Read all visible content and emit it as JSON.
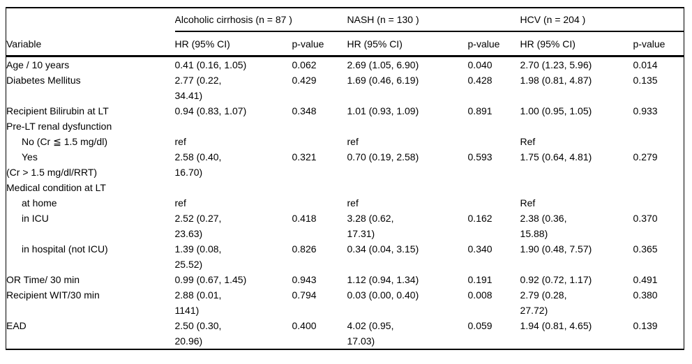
{
  "colors": {
    "background": "#ffffff",
    "text": "#000000",
    "rule": "#000000"
  },
  "table": {
    "variable_header": "Variable",
    "groups": [
      {
        "label": "Alcoholic cirrhosis (n = 87 )",
        "hr_header": "HR (95% CI)",
        "p_header": "p-value"
      },
      {
        "label": "NASH (n = 130 )",
        "hr_header": "HR (95% CI)",
        "p_header": "p-value"
      },
      {
        "label": "HCV (n = 204 )",
        "hr_header": "HR (95% CI)",
        "p_header": "p-value"
      }
    ],
    "rows": [
      {
        "variable": "Age / 10 years",
        "indent": false,
        "cells": [
          {
            "hr": "0.41 (0.16, 1.05)",
            "p": "0.062",
            "p_bold": false
          },
          {
            "hr": "2.69 (1.05, 6.90)",
            "p": "0.040",
            "p_bold": true
          },
          {
            "hr": "2.70 (1.23, 5.96)",
            "p": "0.014",
            "p_bold": true
          }
        ]
      },
      {
        "variable": "Diabetes Mellitus",
        "indent": false,
        "cells": [
          {
            "hr": "2.77 (0.22,\n34.41)",
            "p": "0.429",
            "p_bold": false
          },
          {
            "hr": "1.69 (0.46, 6.19)",
            "p": "0.428",
            "p_bold": false
          },
          {
            "hr": "1.98 (0.81, 4.87)",
            "p": "0.135",
            "p_bold": false
          }
        ]
      },
      {
        "variable": "Recipient Bilirubin at LT",
        "indent": false,
        "cells": [
          {
            "hr": "0.94 (0.83, 1.07)",
            "p": "0.348",
            "p_bold": false
          },
          {
            "hr": "1.01 (0.93, 1.09)",
            "p": "0.891",
            "p_bold": false
          },
          {
            "hr": "1.00 (0.95, 1.05)",
            "p": "0.933",
            "p_bold": false
          }
        ]
      },
      {
        "variable": "Pre-LT renal dysfunction",
        "indent": false,
        "cells": [
          {
            "hr": "",
            "p": "",
            "p_bold": false
          },
          {
            "hr": "",
            "p": "",
            "p_bold": false
          },
          {
            "hr": "",
            "p": "",
            "p_bold": false
          }
        ]
      },
      {
        "variable": "No (Cr ≦ 1.5 mg/dl)",
        "indent": true,
        "cells": [
          {
            "hr": "ref",
            "p": "",
            "p_bold": false
          },
          {
            "hr": "ref",
            "p": "",
            "p_bold": false
          },
          {
            "hr": "Ref",
            "p": "",
            "p_bold": false
          }
        ]
      },
      {
        "variable": "Yes\n(Cr > 1.5 mg/dl/RRT)",
        "indent": true,
        "cells": [
          {
            "hr": "2.58 (0.40,\n16.70)",
            "p": "0.321",
            "p_bold": false
          },
          {
            "hr": "0.70 (0.19, 2.58)",
            "p": "0.593",
            "p_bold": false
          },
          {
            "hr": "1.75 (0.64, 4.81)",
            "p": "0.279",
            "p_bold": false
          }
        ]
      },
      {
        "variable": "Medical condition at LT",
        "indent": false,
        "cells": [
          {
            "hr": "",
            "p": "",
            "p_bold": false
          },
          {
            "hr": "",
            "p": "",
            "p_bold": false
          },
          {
            "hr": "",
            "p": "",
            "p_bold": false
          }
        ]
      },
      {
        "variable": "at home",
        "indent": true,
        "cells": [
          {
            "hr": "ref",
            "p": "",
            "p_bold": false
          },
          {
            "hr": "ref",
            "p": "",
            "p_bold": false
          },
          {
            "hr": "Ref",
            "p": "",
            "p_bold": false
          }
        ]
      },
      {
        "variable": "in ICU",
        "indent": true,
        "cells": [
          {
            "hr": "2.52 (0.27,\n23.63)",
            "p": "0.418",
            "p_bold": false
          },
          {
            "hr": "3.28 (0.62,\n17.31)",
            "p": "0.162",
            "p_bold": false
          },
          {
            "hr": "2.38 (0.36,\n15.88)",
            "p": "0.370",
            "p_bold": false
          }
        ]
      },
      {
        "variable": "in hospital (not ICU)",
        "indent": true,
        "cells": [
          {
            "hr": "1.39 (0.08,\n25.52)",
            "p": "0.826",
            "p_bold": false
          },
          {
            "hr": "0.34 (0.04, 3.15)",
            "p": "0.340",
            "p_bold": false
          },
          {
            "hr": "1.90 (0.48, 7.57)",
            "p": "0.365",
            "p_bold": false
          }
        ]
      },
      {
        "variable": "OR Time/ 30 min",
        "indent": false,
        "cells": [
          {
            "hr": "0.99 (0.67, 1.45)",
            "p": "0.943",
            "p_bold": false
          },
          {
            "hr": "1.12 (0.94, 1.34)",
            "p": "0.191",
            "p_bold": false
          },
          {
            "hr": "0.92 (0.72, 1.17)",
            "p": "0.491",
            "p_bold": false
          }
        ]
      },
      {
        "variable": "Recipient WIT/30 min",
        "indent": false,
        "cells": [
          {
            "hr": "2.88 (0.01,\n1141)",
            "p": "0.794",
            "p_bold": false
          },
          {
            "hr": "0.03 (0.00, 0.40)",
            "p": "0.008",
            "p_bold": true
          },
          {
            "hr": "2.79 (0.28,\n27.72)",
            "p": "0.380",
            "p_bold": false
          }
        ]
      },
      {
        "variable": "EAD",
        "indent": false,
        "cells": [
          {
            "hr": "2.50 (0.30,\n20.96)",
            "p": "0.400",
            "p_bold": false
          },
          {
            "hr": "4.02 (0.95,\n17.03)",
            "p": "0.059",
            "p_bold": true
          },
          {
            "hr": "1.94 (0.81, 4.65)",
            "p": "0.139",
            "p_bold": false
          }
        ]
      }
    ]
  }
}
